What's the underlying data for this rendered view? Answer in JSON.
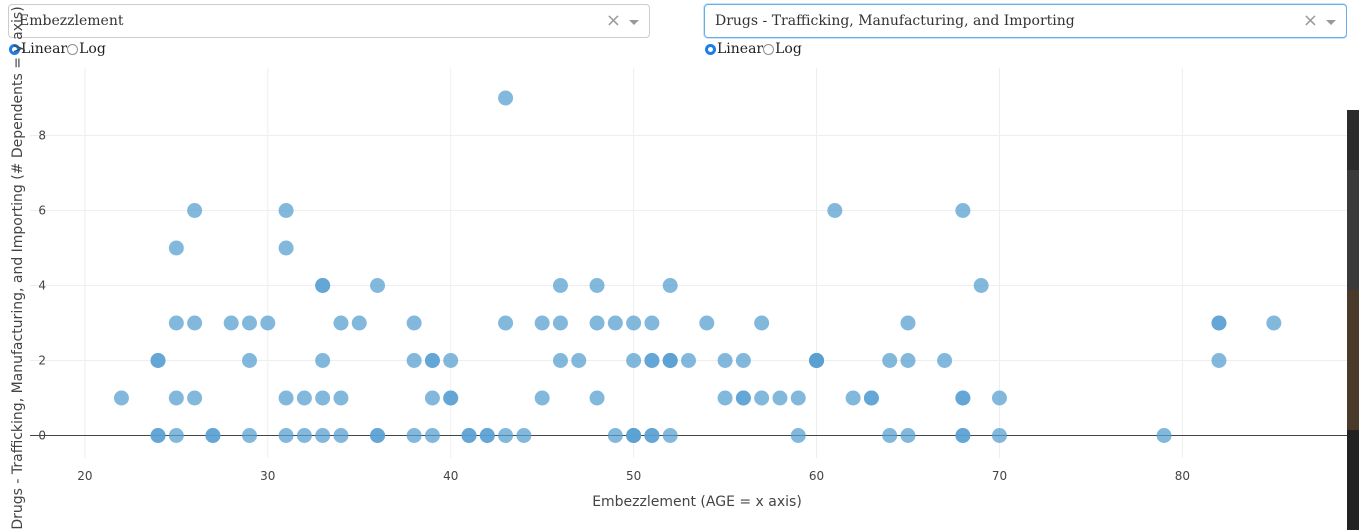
{
  "left_control": {
    "dropdown_value": "Embezzlement",
    "clear_glyph": "×",
    "scale_options": [
      "Linear",
      "Log"
    ],
    "selected_scale": "Linear"
  },
  "right_control": {
    "dropdown_value": "Drugs - Trafficking, Manufacturing, and Importing",
    "clear_glyph": "×",
    "scale_options": [
      "Linear",
      "Log"
    ],
    "selected_scale": "Linear"
  },
  "chart_data": {
    "type": "scatter",
    "xlabel": "Embezzlement   (AGE = x axis)",
    "ylabel": "Drugs - Trafficking, Manufacturing, and Importing   (# Dependents = y axis)",
    "xlim": [
      17,
      89
    ],
    "ylim": [
      -0.6,
      9.8
    ],
    "x_ticks": [
      20,
      30,
      40,
      50,
      60,
      70,
      80
    ],
    "y_ticks": [
      0,
      2,
      4,
      6,
      8
    ],
    "grid": true,
    "marker_color": "#5aa0d2",
    "points": [
      {
        "x": 22,
        "y": 1
      },
      {
        "x": 24,
        "y": 0
      },
      {
        "x": 24,
        "y": 0
      },
      {
        "x": 24,
        "y": 2
      },
      {
        "x": 24,
        "y": 2
      },
      {
        "x": 25,
        "y": 0
      },
      {
        "x": 25,
        "y": 1
      },
      {
        "x": 25,
        "y": 3
      },
      {
        "x": 25,
        "y": 5
      },
      {
        "x": 26,
        "y": 1
      },
      {
        "x": 26,
        "y": 3
      },
      {
        "x": 26,
        "y": 6
      },
      {
        "x": 27,
        "y": 0
      },
      {
        "x": 27,
        "y": 0
      },
      {
        "x": 28,
        "y": 3
      },
      {
        "x": 29,
        "y": 0
      },
      {
        "x": 29,
        "y": 2
      },
      {
        "x": 29,
        "y": 3
      },
      {
        "x": 30,
        "y": 3
      },
      {
        "x": 31,
        "y": 0
      },
      {
        "x": 31,
        "y": 1
      },
      {
        "x": 31,
        "y": 5
      },
      {
        "x": 31,
        "y": 6
      },
      {
        "x": 32,
        "y": 0
      },
      {
        "x": 32,
        "y": 1
      },
      {
        "x": 33,
        "y": 0
      },
      {
        "x": 33,
        "y": 1
      },
      {
        "x": 33,
        "y": 2
      },
      {
        "x": 33,
        "y": 4
      },
      {
        "x": 33,
        "y": 4
      },
      {
        "x": 34,
        "y": 0
      },
      {
        "x": 34,
        "y": 1
      },
      {
        "x": 34,
        "y": 3
      },
      {
        "x": 35,
        "y": 3
      },
      {
        "x": 36,
        "y": 0
      },
      {
        "x": 36,
        "y": 0
      },
      {
        "x": 36,
        "y": 4
      },
      {
        "x": 38,
        "y": 0
      },
      {
        "x": 38,
        "y": 2
      },
      {
        "x": 38,
        "y": 3
      },
      {
        "x": 39,
        "y": 0
      },
      {
        "x": 39,
        "y": 1
      },
      {
        "x": 39,
        "y": 2
      },
      {
        "x": 39,
        "y": 2
      },
      {
        "x": 40,
        "y": 1
      },
      {
        "x": 40,
        "y": 1
      },
      {
        "x": 40,
        "y": 2
      },
      {
        "x": 41,
        "y": 0
      },
      {
        "x": 41,
        "y": 0
      },
      {
        "x": 42,
        "y": 0
      },
      {
        "x": 42,
        "y": 0
      },
      {
        "x": 43,
        "y": 0
      },
      {
        "x": 43,
        "y": 3
      },
      {
        "x": 43,
        "y": 9
      },
      {
        "x": 44,
        "y": 0
      },
      {
        "x": 45,
        "y": 1
      },
      {
        "x": 45,
        "y": 3
      },
      {
        "x": 46,
        "y": 2
      },
      {
        "x": 46,
        "y": 3
      },
      {
        "x": 46,
        "y": 4
      },
      {
        "x": 47,
        "y": 2
      },
      {
        "x": 48,
        "y": 1
      },
      {
        "x": 48,
        "y": 3
      },
      {
        "x": 48,
        "y": 4
      },
      {
        "x": 49,
        "y": 0
      },
      {
        "x": 49,
        "y": 3
      },
      {
        "x": 50,
        "y": 0
      },
      {
        "x": 50,
        "y": 0
      },
      {
        "x": 50,
        "y": 0
      },
      {
        "x": 50,
        "y": 2
      },
      {
        "x": 50,
        "y": 3
      },
      {
        "x": 51,
        "y": 0
      },
      {
        "x": 51,
        "y": 0
      },
      {
        "x": 51,
        "y": 2
      },
      {
        "x": 51,
        "y": 2
      },
      {
        "x": 51,
        "y": 3
      },
      {
        "x": 52,
        "y": 0
      },
      {
        "x": 52,
        "y": 2
      },
      {
        "x": 52,
        "y": 2
      },
      {
        "x": 52,
        "y": 2
      },
      {
        "x": 52,
        "y": 4
      },
      {
        "x": 53,
        "y": 2
      },
      {
        "x": 54,
        "y": 3
      },
      {
        "x": 55,
        "y": 1
      },
      {
        "x": 55,
        "y": 2
      },
      {
        "x": 56,
        "y": 1
      },
      {
        "x": 56,
        "y": 1
      },
      {
        "x": 56,
        "y": 2
      },
      {
        "x": 57,
        "y": 1
      },
      {
        "x": 57,
        "y": 3
      },
      {
        "x": 58,
        "y": 1
      },
      {
        "x": 59,
        "y": 0
      },
      {
        "x": 59,
        "y": 1
      },
      {
        "x": 60,
        "y": 2
      },
      {
        "x": 60,
        "y": 2
      },
      {
        "x": 60,
        "y": 2
      },
      {
        "x": 60,
        "y": 2
      },
      {
        "x": 61,
        "y": 6
      },
      {
        "x": 62,
        "y": 1
      },
      {
        "x": 63,
        "y": 1
      },
      {
        "x": 63,
        "y": 1
      },
      {
        "x": 64,
        "y": 0
      },
      {
        "x": 64,
        "y": 2
      },
      {
        "x": 65,
        "y": 0
      },
      {
        "x": 65,
        "y": 2
      },
      {
        "x": 65,
        "y": 3
      },
      {
        "x": 67,
        "y": 2
      },
      {
        "x": 68,
        "y": 0
      },
      {
        "x": 68,
        "y": 0
      },
      {
        "x": 68,
        "y": 1
      },
      {
        "x": 68,
        "y": 1
      },
      {
        "x": 68,
        "y": 6
      },
      {
        "x": 69,
        "y": 4
      },
      {
        "x": 70,
        "y": 0
      },
      {
        "x": 70,
        "y": 1
      },
      {
        "x": 79,
        "y": 0
      },
      {
        "x": 82,
        "y": 2
      },
      {
        "x": 82,
        "y": 3
      },
      {
        "x": 82,
        "y": 3
      },
      {
        "x": 85,
        "y": 3
      }
    ]
  }
}
